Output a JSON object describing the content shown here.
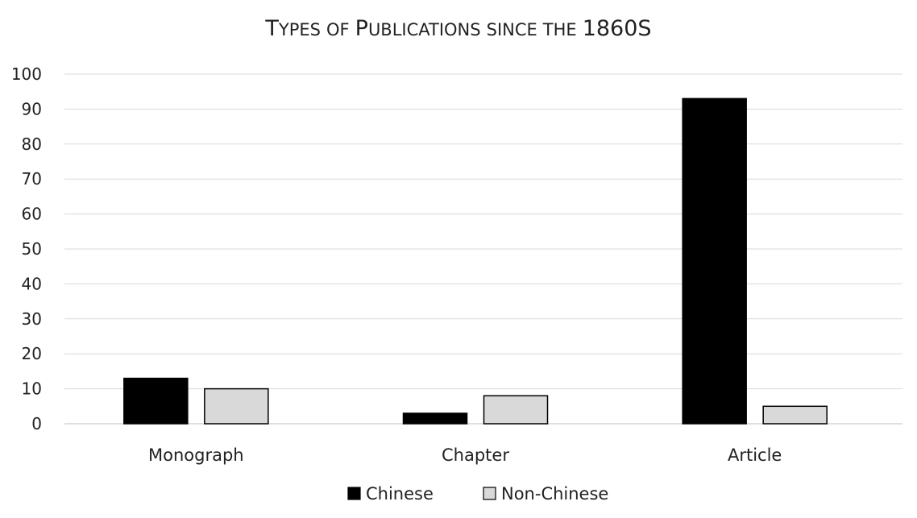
{
  "chart_data": {
    "type": "bar",
    "title": "Types of Publications since the 1860s",
    "categories": [
      "Monograph",
      "Chapter",
      "Article"
    ],
    "series": [
      {
        "name": "Chinese",
        "values": [
          13,
          3,
          93
        ],
        "color": "#000000"
      },
      {
        "name": "Non-Chinese",
        "values": [
          10,
          8,
          5
        ],
        "color": "#d9d9d9"
      }
    ],
    "ylim": [
      0,
      100
    ],
    "yticks": [
      0,
      10,
      20,
      30,
      40,
      50,
      60,
      70,
      80,
      90,
      100
    ],
    "grid": true,
    "legend": "bottom-center",
    "xlabel": "",
    "ylabel": ""
  }
}
